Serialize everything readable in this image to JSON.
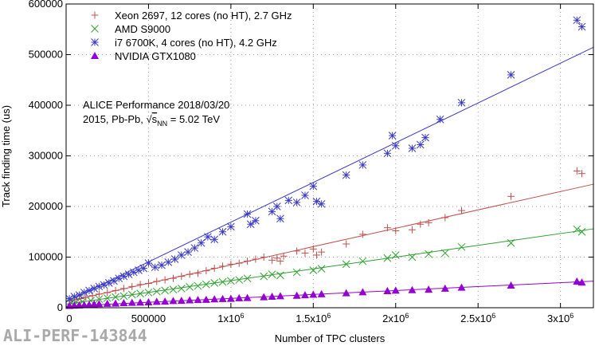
{
  "chart_data": {
    "type": "scatter",
    "xlabel": "Number of TPC clusters",
    "ylabel": "Track finding time (us)",
    "xlim": [
      0,
      3200000
    ],
    "ylim": [
      0,
      600000
    ],
    "x_ticks": [
      0,
      500000,
      1000000,
      1500000,
      2000000,
      2500000,
      3000000
    ],
    "x_tick_labels": [
      "0",
      "500000",
      "1x10",
      "1.5x10",
      "2x10",
      "2.5x10",
      "3x10"
    ],
    "x_tick_exp": [
      "",
      "",
      "6",
      "6",
      "6",
      "6",
      "6"
    ],
    "y_ticks": [
      0,
      100000,
      200000,
      300000,
      400000,
      500000,
      600000
    ],
    "y_tick_labels": [
      "0",
      "100000",
      "200000",
      "300000",
      "400000",
      "500000",
      "600000"
    ],
    "grid": "dotted",
    "legend_position": "top-left",
    "series": [
      {
        "name": "Xeon 2697, 12 cores (no HT), 2.7 GHz",
        "color": "#c0504d",
        "marker": "plus",
        "fit_slope": 0.0725,
        "fit_intercept": 12000,
        "x": [
          30000,
          60000,
          90000,
          120000,
          160000,
          200000,
          250000,
          300000,
          350000,
          400000,
          450000,
          500000,
          550000,
          600000,
          650000,
          700000,
          750000,
          800000,
          850000,
          900000,
          950000,
          1000000,
          1050000,
          1100000,
          1150000,
          1200000,
          1250000,
          1280000,
          1300000,
          1320000,
          1400000,
          1450000,
          1500000,
          1520000,
          1550000,
          1700000,
          1800000,
          1950000,
          2000000,
          2100000,
          2150000,
          2200000,
          2300000,
          2400000,
          2700000,
          3100000,
          3130000
        ],
        "y": [
          14000,
          16000,
          18000,
          21000,
          24000,
          27000,
          30000,
          34000,
          38000,
          42000,
          46000,
          48000,
          52000,
          55000,
          58000,
          62000,
          66000,
          68000,
          73000,
          78000,
          82000,
          86000,
          88000,
          92000,
          96000,
          100000,
          94000,
          98000,
          92000,
          102000,
          112000,
          108000,
          116000,
          104000,
          110000,
          126000,
          145000,
          158000,
          152000,
          154000,
          165000,
          168000,
          178000,
          192000,
          220000,
          270000,
          265000
        ]
      },
      {
        "name": "AMD S9000",
        "color": "#2ca02c",
        "marker": "cross",
        "fit_slope": 0.0465,
        "fit_intercept": 7000,
        "x": [
          30000,
          60000,
          100000,
          150000,
          200000,
          250000,
          300000,
          350000,
          400000,
          450000,
          500000,
          550000,
          600000,
          650000,
          700000,
          750000,
          800000,
          850000,
          900000,
          950000,
          1000000,
          1050000,
          1100000,
          1200000,
          1250000,
          1300000,
          1400000,
          1500000,
          1550000,
          1700000,
          1800000,
          1950000,
          2000000,
          2100000,
          2200000,
          2300000,
          2400000,
          2700000,
          3100000,
          3130000
        ],
        "y": [
          9000,
          10000,
          12000,
          14000,
          17000,
          19000,
          21000,
          23000,
          26000,
          28000,
          30000,
          32000,
          34000,
          36000,
          38000,
          41000,
          43000,
          46000,
          49000,
          51000,
          53000,
          55000,
          58000,
          62000,
          66000,
          64000,
          70000,
          74000,
          77000,
          86000,
          92000,
          98000,
          104000,
          100000,
          106000,
          108000,
          120000,
          128000,
          155000,
          150000
        ]
      },
      {
        "name": "i7 6700K, 4 cores (no HT), 4.2 GHz",
        "color": "#3a3ac8",
        "marker": "star",
        "fit_slope": 0.157,
        "fit_intercept": 12000,
        "x": [
          20000,
          50000,
          80000,
          110000,
          140000,
          170000,
          200000,
          230000,
          260000,
          290000,
          320000,
          350000,
          380000,
          410000,
          440000,
          470000,
          500000,
          540000,
          580000,
          620000,
          660000,
          700000,
          740000,
          780000,
          820000,
          860000,
          900000,
          950000,
          1000000,
          1100000,
          1120000,
          1150000,
          1250000,
          1280000,
          1300000,
          1350000,
          1400000,
          1450000,
          1500000,
          1520000,
          1550000,
          1700000,
          1800000,
          1950000,
          1980000,
          2000000,
          2100000,
          2150000,
          2180000,
          2270000,
          2400000,
          2700000,
          3100000,
          3130000
        ],
        "y": [
          18000,
          22000,
          25000,
          30000,
          34000,
          38000,
          42000,
          45000,
          49000,
          53000,
          58000,
          62000,
          66000,
          70000,
          74000,
          78000,
          88000,
          80000,
          84000,
          90000,
          96000,
          104000,
          110000,
          118000,
          128000,
          140000,
          135000,
          150000,
          160000,
          185000,
          165000,
          172000,
          190000,
          200000,
          176000,
          212000,
          208000,
          222000,
          240000,
          210000,
          205000,
          262000,
          282000,
          305000,
          340000,
          320000,
          315000,
          322000,
          336000,
          372000,
          405000,
          460000,
          568000,
          555000
        ]
      },
      {
        "name": "NVIDIA GTX1080",
        "color": "#9400d3",
        "marker": "triangle",
        "fit_slope": 0.0155,
        "fit_intercept": 3000,
        "x": [
          20000,
          50000,
          80000,
          110000,
          140000,
          170000,
          200000,
          250000,
          300000,
          350000,
          400000,
          450000,
          500000,
          550000,
          600000,
          650000,
          700000,
          750000,
          800000,
          850000,
          900000,
          950000,
          1000000,
          1050000,
          1100000,
          1200000,
          1250000,
          1300000,
          1400000,
          1450000,
          1500000,
          1550000,
          1700000,
          1800000,
          1950000,
          2000000,
          2100000,
          2200000,
          2300000,
          2400000,
          2700000,
          3100000,
          3130000
        ],
        "y": [
          4000,
          4500,
          5000,
          5500,
          6000,
          7000,
          7500,
          8000,
          8500,
          9500,
          10000,
          10500,
          11000,
          12000,
          12500,
          13500,
          14000,
          15000,
          15500,
          16000,
          17000,
          17500,
          18000,
          19000,
          19500,
          21000,
          22000,
          23000,
          24000,
          25000,
          26000,
          27000,
          29000,
          31000,
          33000,
          34000,
          35000,
          36000,
          38000,
          40000,
          44000,
          52000,
          50000
        ]
      }
    ]
  },
  "annotation": {
    "line1": "ALICE Performance 2018/03/20",
    "line2_prefix": "2015, Pb-Pb, ",
    "line2_sqrt": "√",
    "line2_s": "s",
    "line2_sub": "NN",
    "line2_suffix": " = 5.02 TeV"
  },
  "watermark": "ALI-PERF-143844"
}
